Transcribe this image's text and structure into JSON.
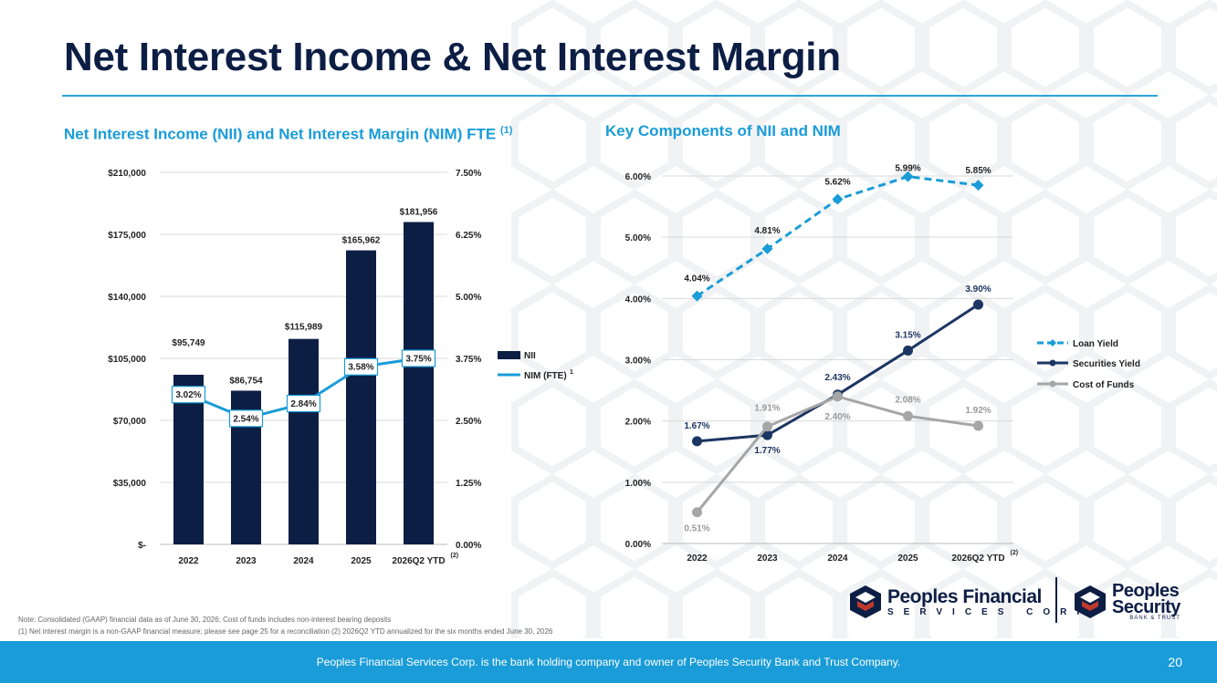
{
  "title": "Net Interest Income & Net Interest Margin",
  "left_title": "Net Interest Income (NII) and Net Interest Margin (NIM) FTE",
  "left_title_sup": "(1)",
  "right_title": "Key Components of NII and NIM",
  "footnotes": [
    "Note: Consolidated (GAAP) financial data as of June 30, 2026; Cost of funds includes non-interest bearing deposits",
    "(1) Net interest margin is a non-GAAP financial measure; please see page 25 for a reconciliation (2) 2026Q2 YTD annualized for the six months ended June 30, 2026"
  ],
  "footer": "Peoples Financial Services Corp. is the bank holding company and owner of Peoples Security Bank and Trust Company.",
  "page_number": "20",
  "logos": {
    "financial_main": "Peoples Financial",
    "financial_sub": "SERVICES CORP.",
    "security_line1": "Peoples",
    "security_line2": "Security",
    "security_small": "BANK & TRUST"
  },
  "colors": {
    "navy": "#0d1e45",
    "cyan": "#1a9cd8",
    "loan": "#1a9cd8",
    "securities": "#1c3562",
    "cost": "#a6a6a6",
    "grid": "#d9d9d9"
  },
  "chart_data": [
    {
      "type": "bar",
      "categories": [
        "2022",
        "2023",
        "2024",
        "2025",
        "2026Q2 YTD"
      ],
      "category_superscripts": [
        "",
        "",
        "",
        "",
        "(2)"
      ],
      "series": [
        {
          "name": "NII",
          "axis": "left",
          "values": [
            95749,
            86754,
            115989,
            165962,
            181956
          ],
          "labels": [
            "$95,749",
            "$86,754",
            "$115,989",
            "$165,962",
            "$181,956"
          ]
        },
        {
          "name": "NIM (FTE)",
          "name_sup": "1",
          "axis": "right",
          "kind": "line",
          "values": [
            3.02,
            2.54,
            2.84,
            3.58,
            3.75
          ],
          "labels": [
            "3.02%",
            "2.54%",
            "2.84%",
            "3.58%",
            "3.75%"
          ]
        }
      ],
      "ylim": [
        0,
        210000
      ],
      "y2lim": [
        0,
        7.5
      ],
      "yticks": [
        "$-",
        "$35,000",
        "$70,000",
        "$105,000",
        "$140,000",
        "$175,000",
        "$210,000"
      ],
      "y2ticks": [
        "0.00%",
        "1.25%",
        "2.50%",
        "3.75%",
        "5.00%",
        "6.25%",
        "7.50%"
      ],
      "grid": true,
      "legend": "right"
    },
    {
      "type": "line",
      "categories": [
        "2022",
        "2023",
        "2024",
        "2025",
        "2026Q2 YTD"
      ],
      "category_superscripts": [
        "",
        "",
        "",
        "",
        "(2)"
      ],
      "series": [
        {
          "name": "Loan Yield",
          "values": [
            4.04,
            4.81,
            5.62,
            5.99,
            5.85
          ],
          "labels": [
            "4.04%",
            "4.81%",
            "5.62%",
            "5.99%",
            "5.85%"
          ]
        },
        {
          "name": "Securities Yield",
          "values": [
            1.67,
            1.77,
            2.43,
            3.15,
            3.9
          ],
          "labels": [
            "1.67%",
            "1.77%",
            "2.43%",
            "3.15%",
            "3.90%"
          ]
        },
        {
          "name": "Cost of Funds",
          "values": [
            0.51,
            1.91,
            2.4,
            2.08,
            1.92
          ],
          "labels": [
            "0.51%",
            "1.91%",
            "2.40%",
            "2.08%",
            "1.92%"
          ]
        }
      ],
      "ylim": [
        0,
        6
      ],
      "yticks": [
        "0.00%",
        "1.00%",
        "2.00%",
        "3.00%",
        "4.00%",
        "5.00%",
        "6.00%"
      ],
      "grid": true,
      "legend": "right"
    }
  ]
}
